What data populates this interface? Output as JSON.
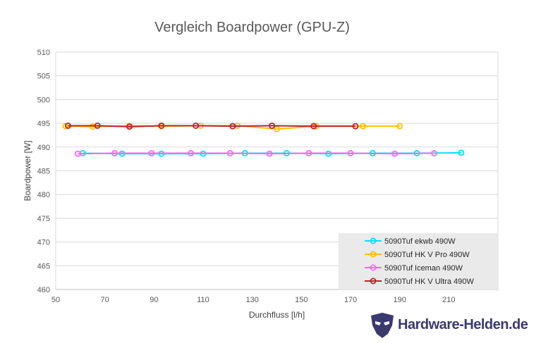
{
  "chart_data": {
    "type": "line",
    "title": "Vergleich Boardpower (GPU-Z)",
    "xlabel": "Durchfluss [l/h]",
    "ylabel": "Boardpower  [W]",
    "xlim": [
      50,
      230
    ],
    "ylim": [
      460,
      510
    ],
    "xticks": [
      50,
      70,
      90,
      110,
      130,
      150,
      170,
      190,
      210
    ],
    "yticks": [
      460,
      465,
      470,
      475,
      480,
      485,
      490,
      495,
      500,
      505,
      510
    ],
    "grid": "horizontal",
    "legend_position": "bottom-right",
    "series": [
      {
        "name": "5090Tuf ekwb 490W",
        "color": "#00e5ff",
        "x": [
          61,
          77,
          93,
          110,
          127,
          144,
          161,
          179,
          197,
          215
        ],
        "y": [
          488.7,
          488.6,
          488.6,
          488.6,
          488.7,
          488.7,
          488.6,
          488.7,
          488.7,
          488.8
        ]
      },
      {
        "name": "5090Tuf HK V Pro 490W",
        "color": "#ffc000",
        "x": [
          54,
          65,
          80,
          93,
          109,
          124,
          140,
          156,
          175,
          190
        ],
        "y": [
          494.4,
          494.3,
          494.5,
          494.4,
          494.5,
          494.5,
          493.8,
          494.4,
          494.4,
          494.4
        ]
      },
      {
        "name": "5090Tuf Iceman 490W",
        "color": "#ff66ff",
        "x": [
          59,
          74,
          89,
          105,
          121,
          137,
          153,
          170,
          188,
          204
        ],
        "y": [
          488.6,
          488.7,
          488.7,
          488.7,
          488.7,
          488.6,
          488.7,
          488.7,
          488.6,
          488.7
        ]
      },
      {
        "name": "5090Tuf HK V Ultra 490W",
        "color": "#c0212e",
        "x": [
          55,
          67,
          80,
          93,
          107,
          122,
          138,
          155,
          172
        ],
        "y": [
          494.5,
          494.5,
          494.3,
          494.5,
          494.5,
          494.4,
          494.5,
          494.4,
          494.4
        ]
      }
    ]
  },
  "logo": {
    "text": "Hardware-Helden.de",
    "color": "#3b3a6e"
  }
}
